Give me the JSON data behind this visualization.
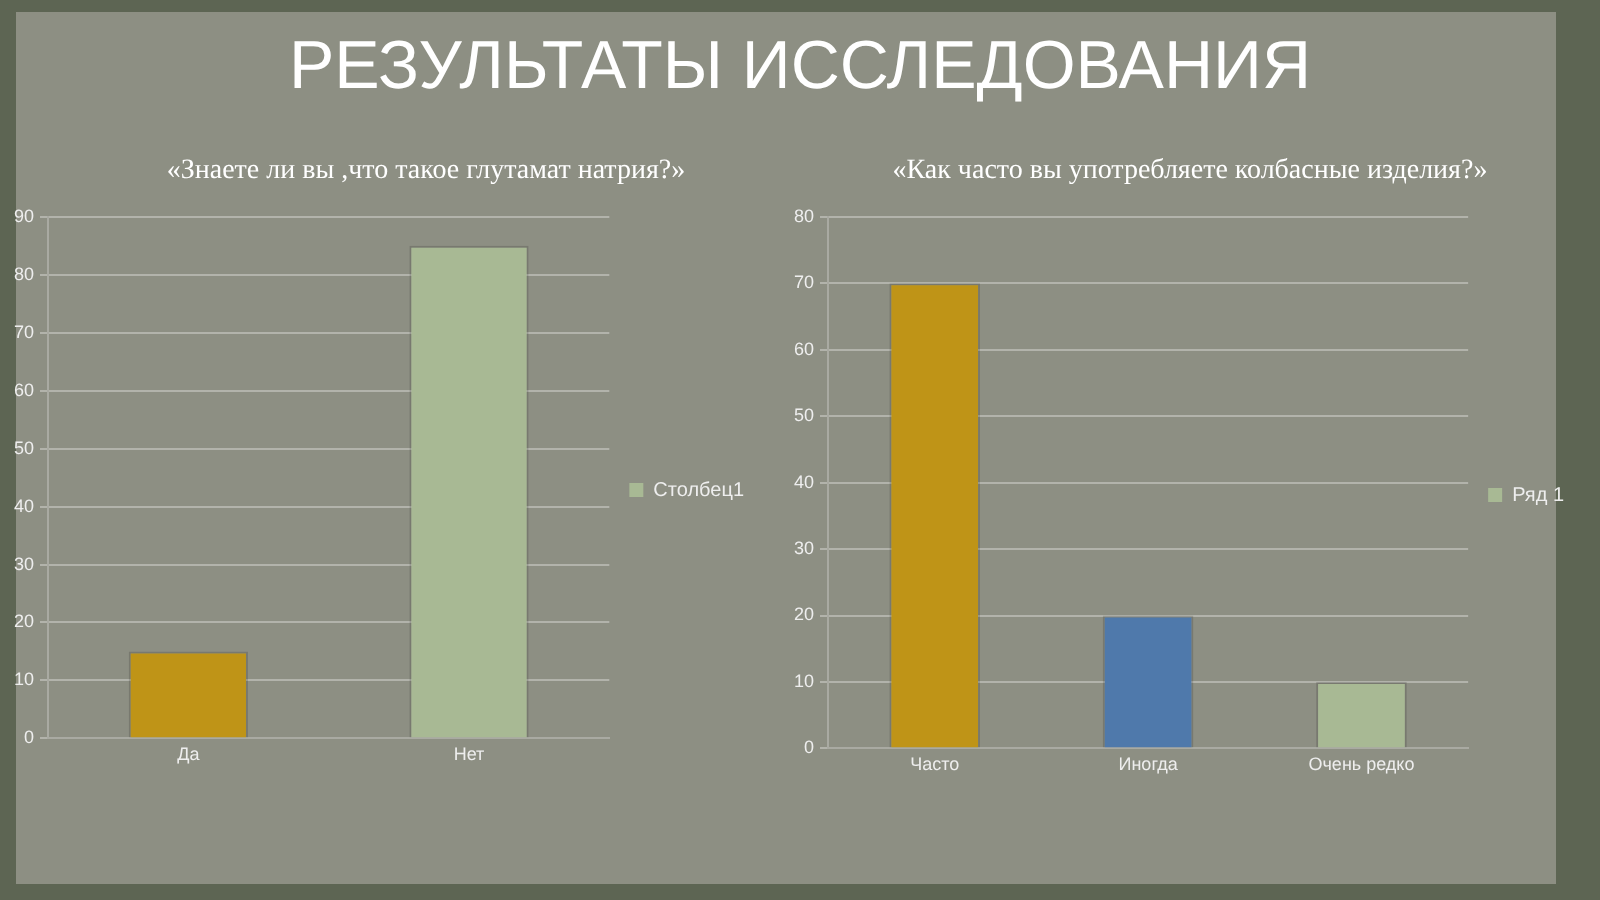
{
  "chart_data": [
    {
      "type": "bar",
      "title": "РЕЗУЛЬТАТЫ ИССЛЕДОВАНИЯ",
      "subtitle": "«Знаете ли вы ,что такое глутамат натрия?»",
      "categories": [
        "Да",
        "Нет"
      ],
      "series": [
        {
          "name": "Столбец1",
          "color": "#a8b994",
          "colors": [
            "#bf9417",
            "#a8b994"
          ],
          "values": [
            15,
            85
          ]
        }
      ],
      "ylim": [
        0,
        90
      ],
      "yticks": [
        0,
        10,
        20,
        30,
        40,
        50,
        60,
        70,
        80,
        90
      ],
      "grid": "y",
      "legend": "right"
    },
    {
      "type": "bar",
      "title": "«Как часто вы употребляете колбасные изделия?»",
      "categories": [
        "Часто",
        "Иногда",
        "Очень редко"
      ],
      "series": [
        {
          "name": "Ряд 1",
          "color": "#a8b994",
          "colors": [
            "#bf9417",
            "#4f79ab",
            "#a8b994"
          ],
          "values": [
            70,
            20,
            10
          ]
        }
      ],
      "ylim": [
        0,
        80
      ],
      "yticks": [
        0,
        10,
        20,
        30,
        40,
        50,
        60,
        70,
        80
      ],
      "grid": "y",
      "legend": "right"
    }
  ]
}
